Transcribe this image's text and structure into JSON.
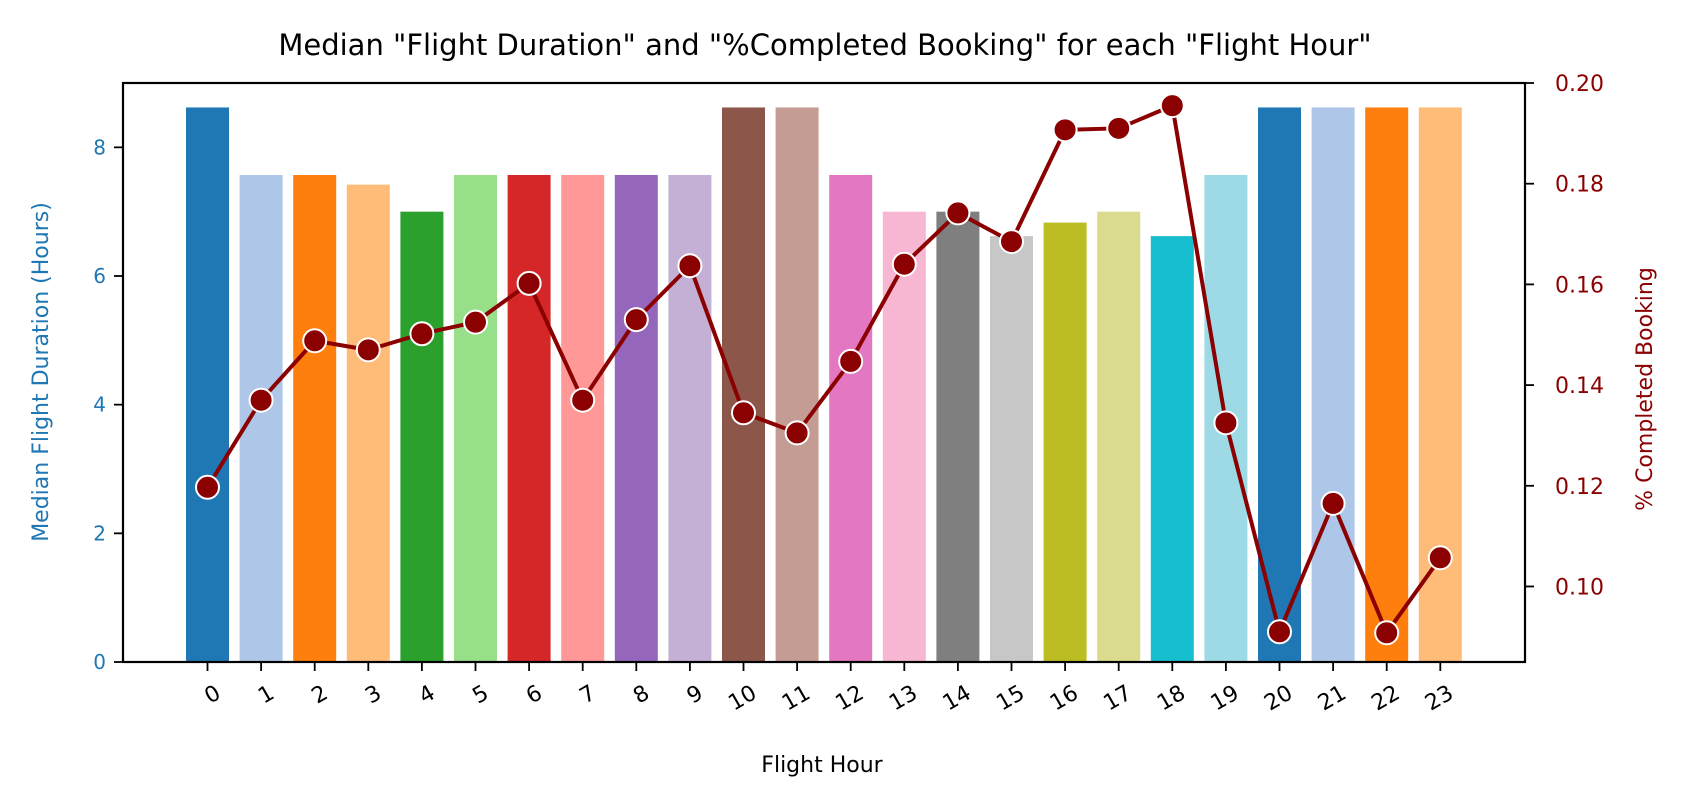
{
  "chart_data": {
    "type": "bar",
    "title": "Median \"Flight Duration\" and \"%Completed Booking\" for each \"Flight Hour\"",
    "xlabel": "Flight Hour",
    "categories": [
      "0",
      "1",
      "2",
      "3",
      "4",
      "5",
      "6",
      "7",
      "8",
      "9",
      "10",
      "11",
      "12",
      "13",
      "14",
      "15",
      "16",
      "17",
      "18",
      "19",
      "20",
      "21",
      "22",
      "23"
    ],
    "left_axis": {
      "label": "Median Flight Duration (Hours)",
      "color": "#1f77b4",
      "ylim": [
        0,
        9
      ],
      "ticks": [
        0,
        2,
        4,
        6,
        8
      ]
    },
    "right_axis": {
      "label": "% Completed Booking",
      "color": "#8b0000",
      "ylim": [
        0.085,
        0.2
      ],
      "ticks": [
        0.1,
        0.12,
        0.14,
        0.16,
        0.18,
        0.2
      ],
      "tick_labels": [
        "0.10",
        "0.12",
        "0.14",
        "0.16",
        "0.18",
        "0.20"
      ]
    },
    "series": [
      {
        "type": "bar",
        "axis": "left",
        "values": [
          8.62,
          7.57,
          7.57,
          7.42,
          7.0,
          7.57,
          7.57,
          7.57,
          7.57,
          7.57,
          8.62,
          8.62,
          7.57,
          7.0,
          7.0,
          6.62,
          6.83,
          7.0,
          6.62,
          7.57,
          8.62,
          8.62,
          8.62,
          8.62
        ],
        "colors": [
          "#1f77b4",
          "#aec7e8",
          "#ff7f0e",
          "#ffbb78",
          "#2ca02c",
          "#98df8a",
          "#d62728",
          "#ff9896",
          "#9467bd",
          "#c5b0d5",
          "#8c564b",
          "#c49c94",
          "#e377c2",
          "#f7b6d2",
          "#7f7f7f",
          "#c7c7c7",
          "#bcbd22",
          "#dbdb8d",
          "#17becf",
          "#9edae5",
          "#1f77b4",
          "#aec7e8",
          "#ff7f0e",
          "#ffbb78"
        ]
      },
      {
        "type": "line",
        "axis": "right",
        "color": "#8b0000",
        "values": [
          0.1197,
          0.137,
          0.1488,
          0.147,
          0.1502,
          0.1525,
          0.1602,
          0.137,
          0.153,
          0.1637,
          0.1345,
          0.1305,
          0.1447,
          0.164,
          0.1742,
          0.1685,
          0.1907,
          0.191,
          0.1955,
          0.1325,
          0.091,
          0.1165,
          0.0908,
          0.1057
        ]
      }
    ],
    "grid": false,
    "legend": "none"
  }
}
